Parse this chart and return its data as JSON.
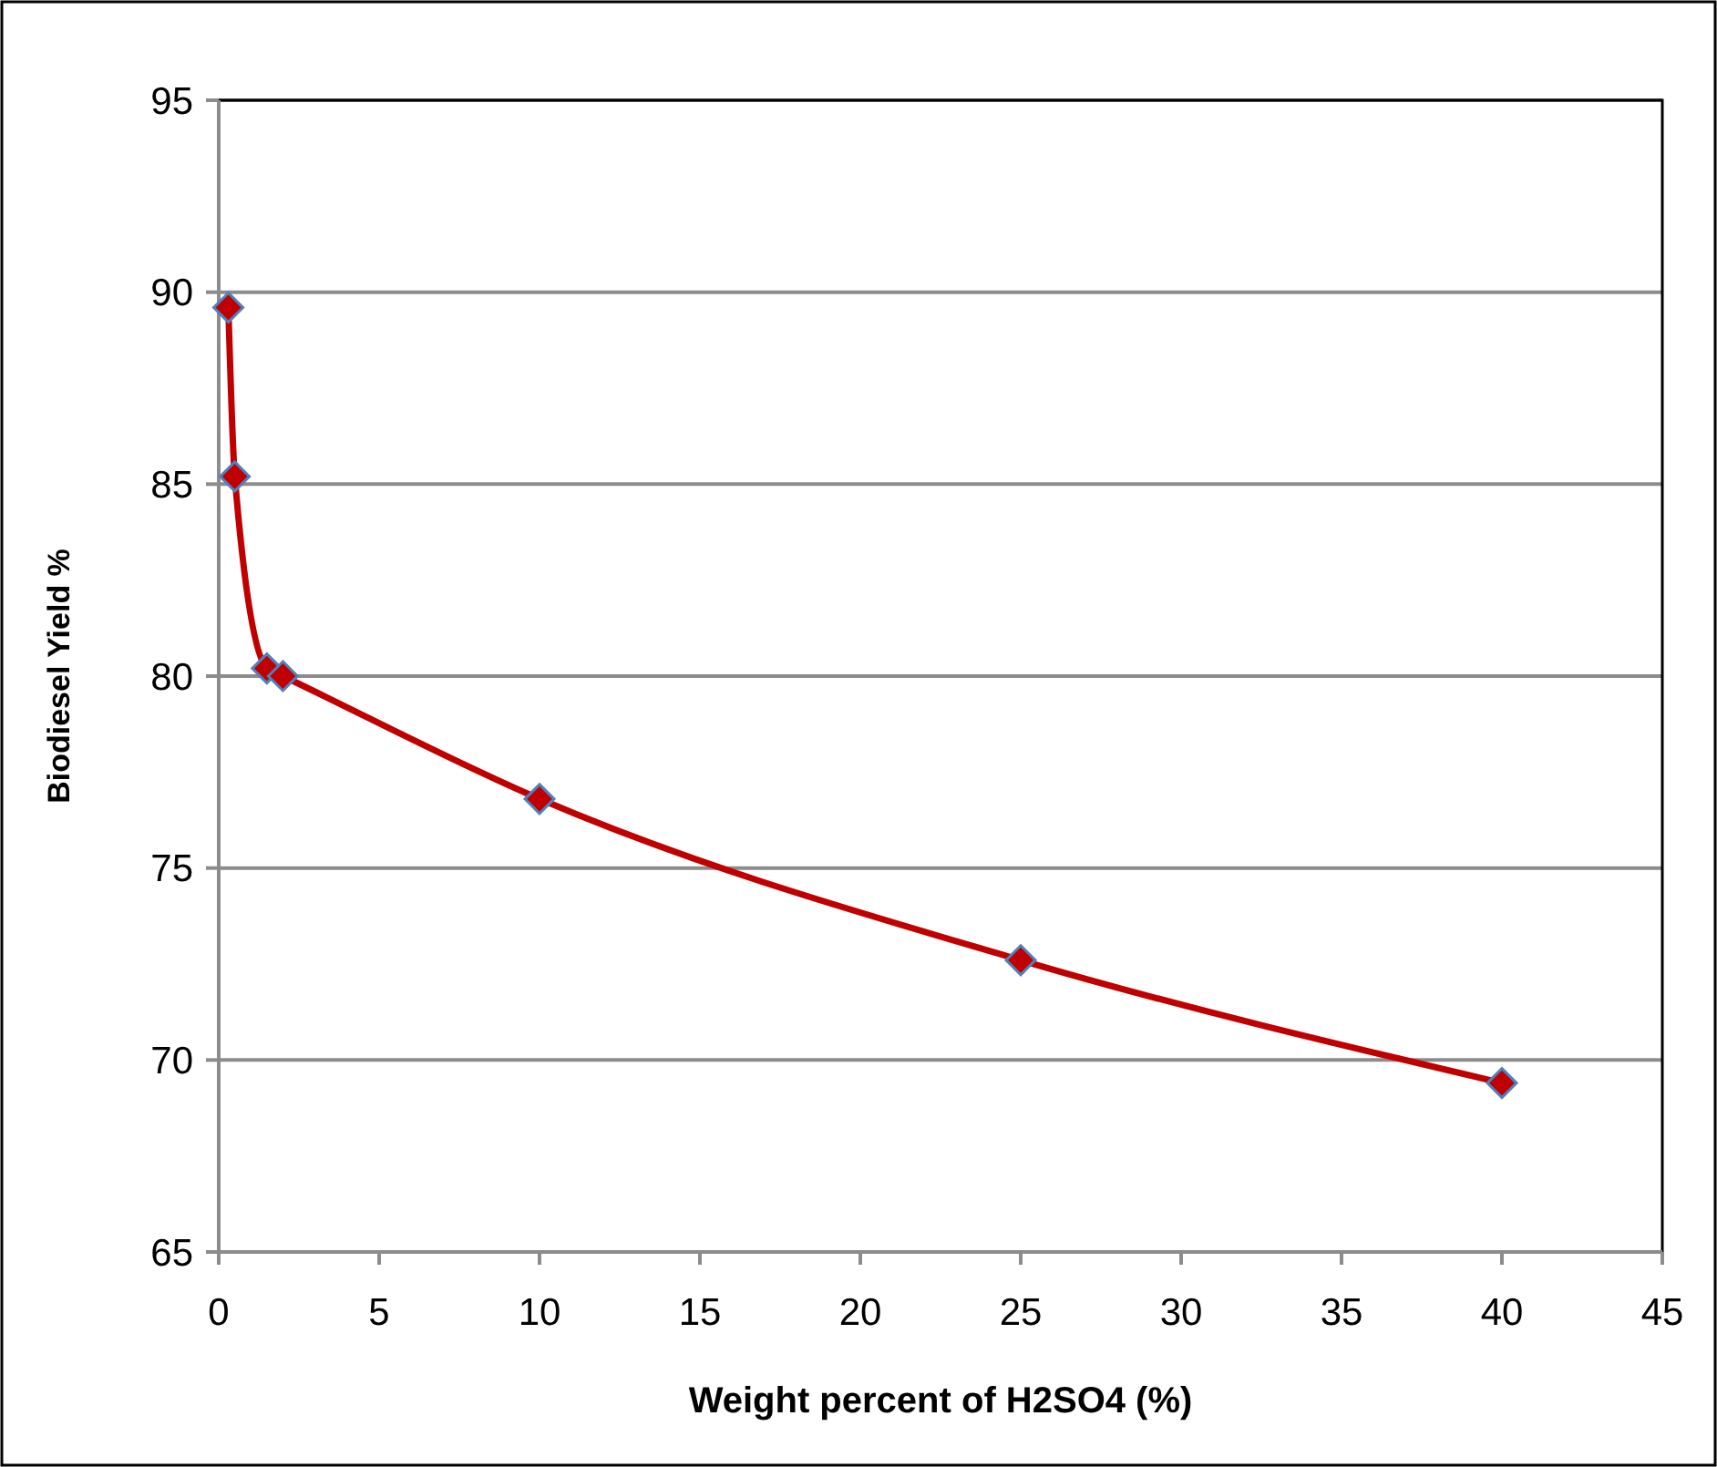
{
  "chart_data": {
    "type": "line",
    "xlabel": "Weight percent of H2SO4 (%)",
    "ylabel": "Biodiesel Yield %",
    "x": [
      0.3,
      0.5,
      1.5,
      2,
      10,
      25,
      40
    ],
    "series": [
      {
        "color": "#c00000",
        "values": [
          89.6,
          85.2,
          80.2,
          80.0,
          76.8,
          72.6,
          69.4
        ]
      }
    ],
    "xlim": [
      0,
      45
    ],
    "xticks": [
      0,
      5,
      10,
      15,
      20,
      25,
      30,
      35,
      40,
      45
    ],
    "ylim": [
      65,
      95
    ],
    "yticks": [
      65,
      70,
      75,
      80,
      85,
      90,
      95
    ],
    "grid": "y",
    "marker": "diamond",
    "line_style": "solid"
  }
}
